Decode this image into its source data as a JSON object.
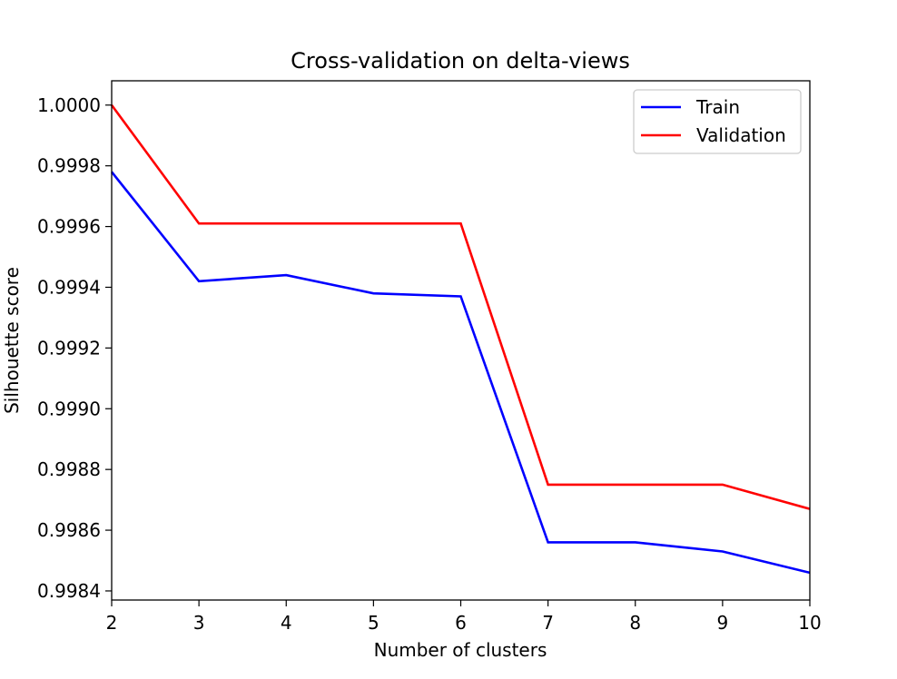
{
  "chart_data": {
    "type": "line",
    "title": "Cross-validation on delta-views",
    "xlabel": "Number of clusters",
    "ylabel": "Silhouette score",
    "x": [
      2,
      3,
      4,
      5,
      6,
      7,
      8,
      9,
      10
    ],
    "xlim": [
      2,
      10
    ],
    "ylim": [
      0.99837,
      1.00008
    ],
    "x_ticks": [
      2,
      3,
      4,
      5,
      6,
      7,
      8,
      9,
      10
    ],
    "x_tick_labels": [
      "2",
      "3",
      "4",
      "5",
      "6",
      "7",
      "8",
      "9",
      "10"
    ],
    "y_ticks": [
      0.9984,
      0.9986,
      0.9988,
      0.999,
      0.9992,
      0.9994,
      0.9996,
      0.9998,
      1.0
    ],
    "y_tick_labels": [
      "0.9984",
      "0.9986",
      "0.9988",
      "0.9990",
      "0.9992",
      "0.9994",
      "0.9996",
      "0.9998",
      "1.0000"
    ],
    "grid": false,
    "legend_position": "top-right",
    "series": [
      {
        "name": "Train",
        "color": "#0000ff",
        "values": [
          0.99978,
          0.99942,
          0.99944,
          0.99938,
          0.99937,
          0.99856,
          0.99856,
          0.99853,
          0.99846
        ]
      },
      {
        "name": "Validation",
        "color": "#ff0000",
        "values": [
          1.0,
          0.99961,
          0.99961,
          0.99961,
          0.99961,
          0.99875,
          0.99875,
          0.99875,
          0.99867
        ]
      }
    ]
  }
}
